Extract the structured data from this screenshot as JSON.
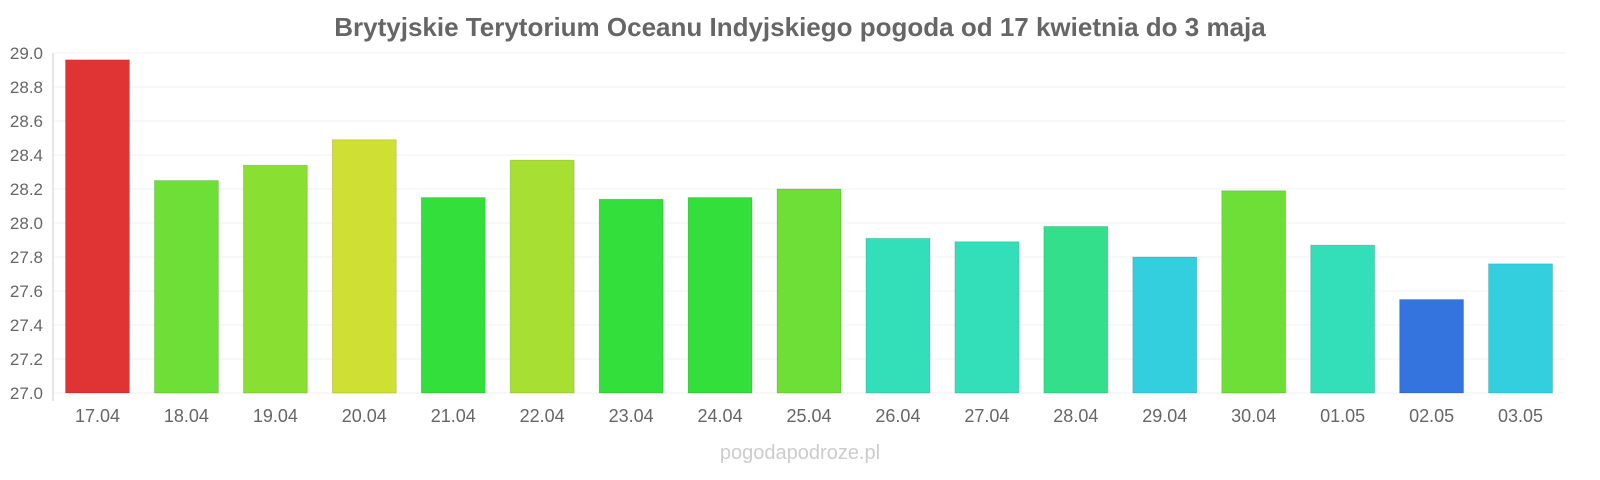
{
  "chart_data": {
    "type": "bar",
    "title": "Brytyjskie Terytorium Oceanu Indyjskiego pogoda od 17 kwietnia do 3 maja",
    "xlabel": "",
    "ylabel": "",
    "ylim": [
      27.0,
      29.0
    ],
    "yticks": [
      "27.0",
      "27.2",
      "27.4",
      "27.6",
      "27.8",
      "28.0",
      "28.2",
      "28.4",
      "28.6",
      "28.8",
      "29.0"
    ],
    "grid": true,
    "categories": [
      "17.04",
      "18.04",
      "19.04",
      "20.04",
      "21.04",
      "22.04",
      "23.04",
      "24.04",
      "25.04",
      "26.04",
      "27.04",
      "28.04",
      "29.04",
      "30.04",
      "01.05",
      "02.05",
      "03.05"
    ],
    "values": [
      28.96,
      28.25,
      28.34,
      28.49,
      28.15,
      28.37,
      28.14,
      28.15,
      28.2,
      27.91,
      27.89,
      27.98,
      27.8,
      28.19,
      27.87,
      27.55,
      27.76
    ],
    "colors": [
      "#e03434",
      "#6ddf37",
      "#8adf33",
      "#cfdf33",
      "#33df3a",
      "#a8df33",
      "#33df3a",
      "#33df3a",
      "#6ddf37",
      "#33dfb8",
      "#33dfb8",
      "#33df8a",
      "#33cfdf",
      "#6ddf37",
      "#33dfb8",
      "#3374df",
      "#33cfdf"
    ]
  },
  "watermark": "pogodapodroze.pl"
}
